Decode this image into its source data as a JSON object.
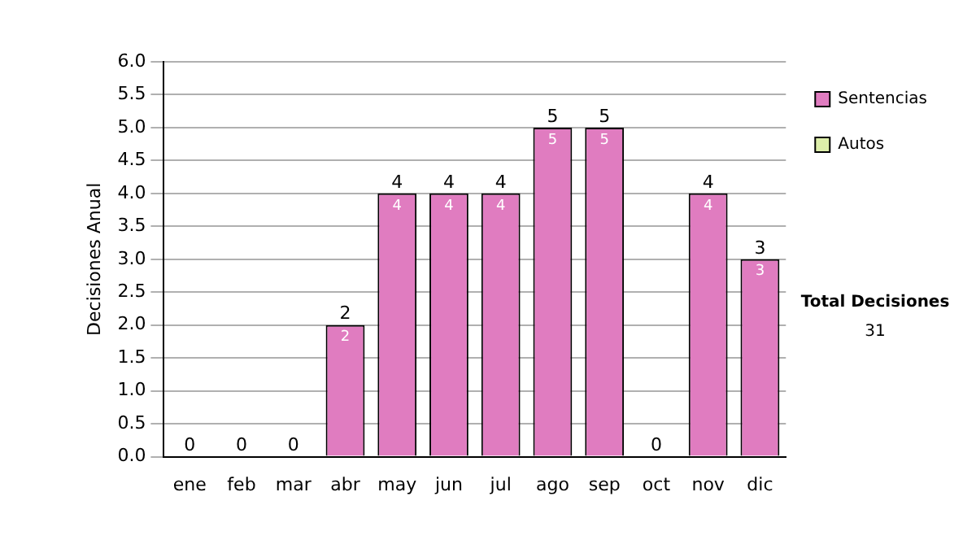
{
  "chart_data": {
    "type": "bar",
    "stacked": true,
    "ylabel": "Decisiones Anual",
    "categories": [
      "ene",
      "feb",
      "mar",
      "abr",
      "may",
      "jun",
      "jul",
      "ago",
      "sep",
      "oct",
      "nov",
      "dic"
    ],
    "series": [
      {
        "name": "Sentencias",
        "color": "#e07cc0",
        "values": [
          0,
          0,
          0,
          2,
          4,
          4,
          4,
          5,
          5,
          0,
          4,
          3
        ],
        "value_labels": [
          null,
          null,
          null,
          "2",
          "4",
          "4",
          "4",
          "5",
          "5",
          null,
          "4",
          "3"
        ]
      },
      {
        "name": "Autos",
        "color": "#ddeeaa",
        "values": [
          0,
          0,
          0,
          0,
          0,
          0,
          0,
          0,
          0,
          0,
          0,
          0
        ]
      }
    ],
    "totals": [
      "0",
      "0",
      "0",
      "2",
      "4",
      "4",
      "4",
      "5",
      "5",
      "0",
      "4",
      "3"
    ],
    "ylim": [
      0,
      6
    ],
    "yticks": [
      {
        "value": 0,
        "label": "0.0"
      },
      {
        "value": 0.5,
        "label": "0.5"
      },
      {
        "value": 1,
        "label": "1.0"
      },
      {
        "value": 1.5,
        "label": "1.5"
      },
      {
        "value": 2,
        "label": "2.0"
      },
      {
        "value": 2.5,
        "label": "2.5"
      },
      {
        "value": 3,
        "label": "3.0"
      },
      {
        "value": 3.5,
        "label": "3.5"
      },
      {
        "value": 4,
        "label": "4.0"
      },
      {
        "value": 4.5,
        "label": "4.5"
      },
      {
        "value": 5,
        "label": "5.0"
      },
      {
        "value": 5.5,
        "label": "5.5"
      },
      {
        "value": 6,
        "label": "6.0"
      }
    ],
    "grid": "y",
    "legend": "right",
    "annotations": [
      "Total Decisiones",
      "31"
    ]
  }
}
